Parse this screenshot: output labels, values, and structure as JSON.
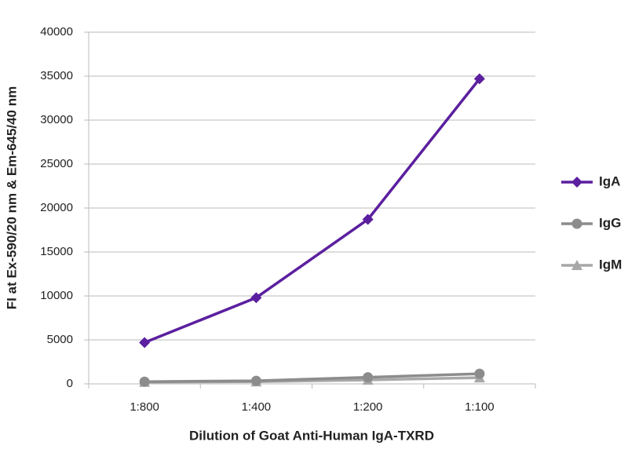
{
  "chart_data": {
    "type": "line",
    "x_label": "Dilution of Goat Anti-Human IgA-TXRD",
    "y_label": "FI at Ex-590/20 nm & Em-645/40 nm",
    "categories": [
      "1:800",
      "1:400",
      "1:200",
      "1:100"
    ],
    "series": [
      {
        "name": "IgA",
        "color": "#5b1f9f",
        "values": [
          4700,
          9800,
          18700,
          34700
        ]
      },
      {
        "name": "IgG",
        "color": "#8c8c8c",
        "values": [
          250,
          350,
          750,
          1150
        ]
      },
      {
        "name": "IgM",
        "color": "#a8a8a8",
        "values": [
          200,
          250,
          450,
          700
        ]
      }
    ],
    "ylim": [
      0,
      40000
    ],
    "yticks": [
      0,
      5000,
      10000,
      15000,
      20000,
      25000,
      30000,
      35000,
      40000
    ],
    "grid": true,
    "legend": "right"
  }
}
